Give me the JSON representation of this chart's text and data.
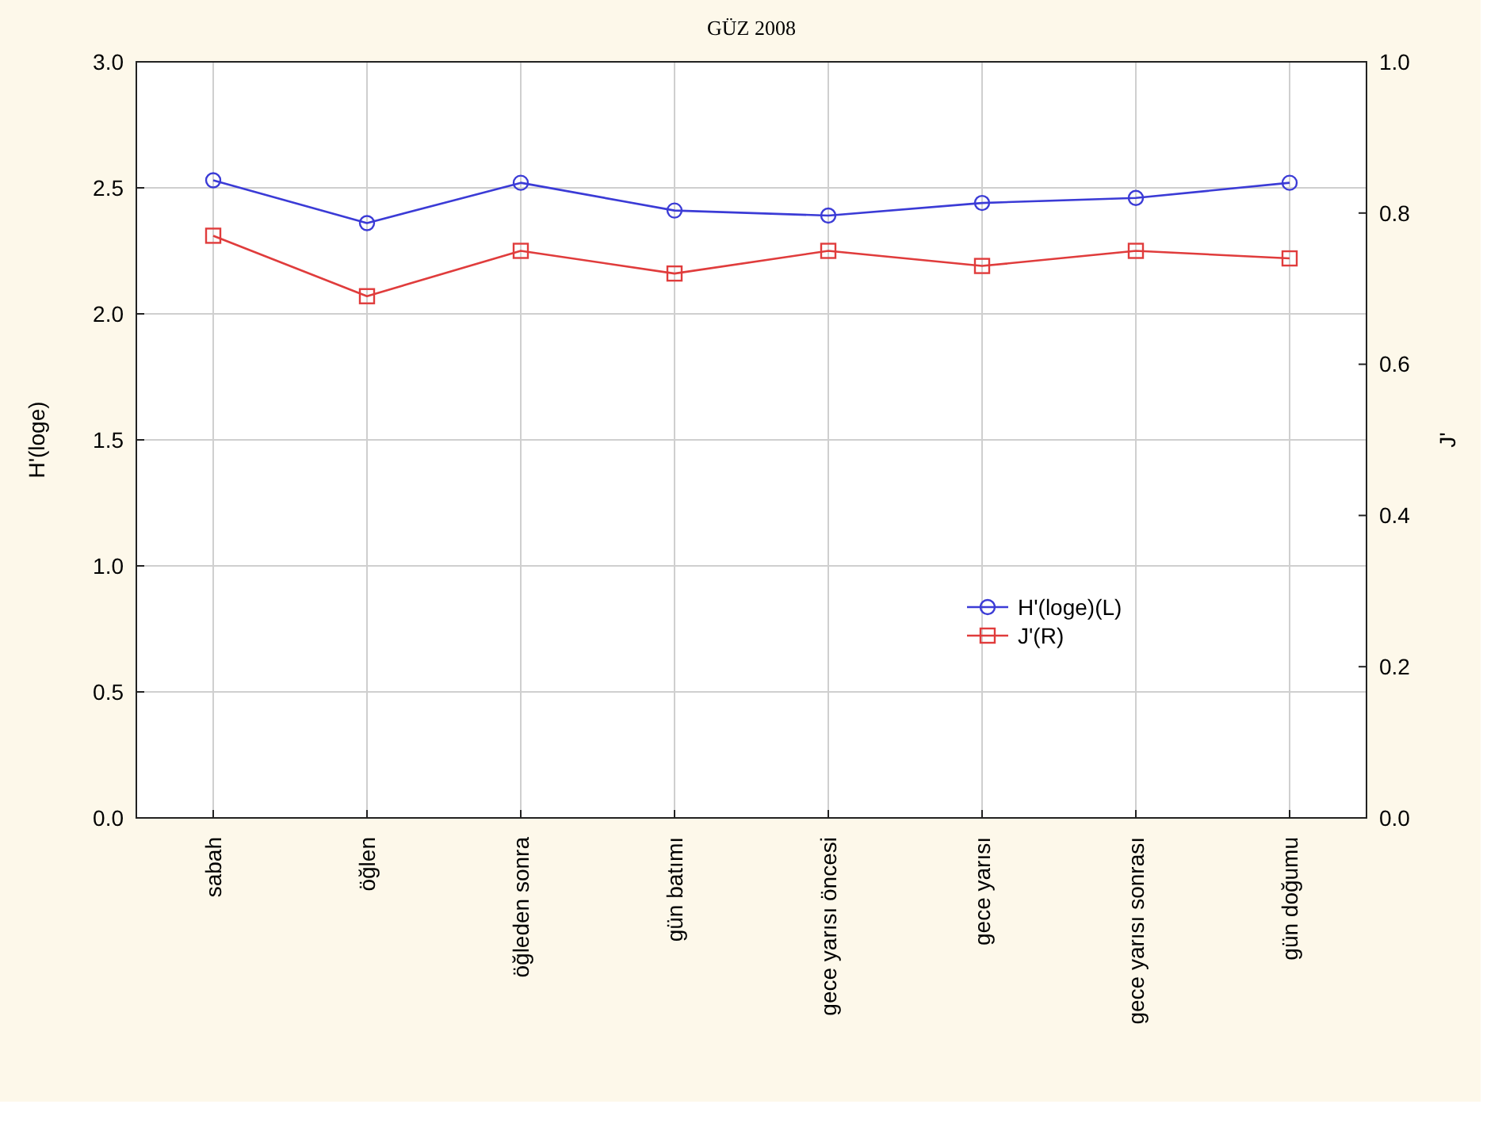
{
  "chart_data": {
    "type": "line",
    "title": "GÜZ 2008",
    "ylabel": "H'(loge)",
    "y2label": "J'",
    "categories": [
      "sabah",
      "öğlen",
      "öğleden sonra",
      "gün batımı",
      "gece yarısı öncesi",
      "gece yarısı",
      "gece yarısı sonrası",
      "gün doğumu"
    ],
    "series": [
      {
        "name": "H'(loge)(L)",
        "color": "#3b3bd6",
        "marker": "circle",
        "values": [
          2.53,
          2.36,
          2.52,
          2.41,
          2.39,
          2.44,
          2.46,
          2.52
        ]
      },
      {
        "name": "J'(R)",
        "color": "#e03c3c",
        "marker": "square",
        "axis": "y2",
        "values": [
          0.77,
          0.69,
          0.75,
          0.72,
          0.75,
          0.73,
          0.75,
          0.74
        ]
      }
    ],
    "ylim": [
      0,
      3
    ],
    "yticks": [
      {
        "value": 0,
        "label": "0.0"
      },
      {
        "value": 0.5,
        "label": "0.5"
      },
      {
        "value": 1,
        "label": "1.0"
      },
      {
        "value": 1.5,
        "label": "1.5"
      },
      {
        "value": 2,
        "label": "2.0"
      },
      {
        "value": 2.5,
        "label": "2.5"
      },
      {
        "value": 3,
        "label": "3.0"
      }
    ],
    "y2lim": [
      0,
      1
    ],
    "y2ticks": [
      {
        "value": 0,
        "label": "0.0"
      },
      {
        "value": 0.2,
        "label": "0.2"
      },
      {
        "value": 0.4,
        "label": "0.4"
      },
      {
        "value": 0.6,
        "label": "0.6"
      },
      {
        "value": 0.8,
        "label": "0.8"
      },
      {
        "value": 1,
        "label": "1.0"
      }
    ],
    "grid": true,
    "legend": "right"
  }
}
